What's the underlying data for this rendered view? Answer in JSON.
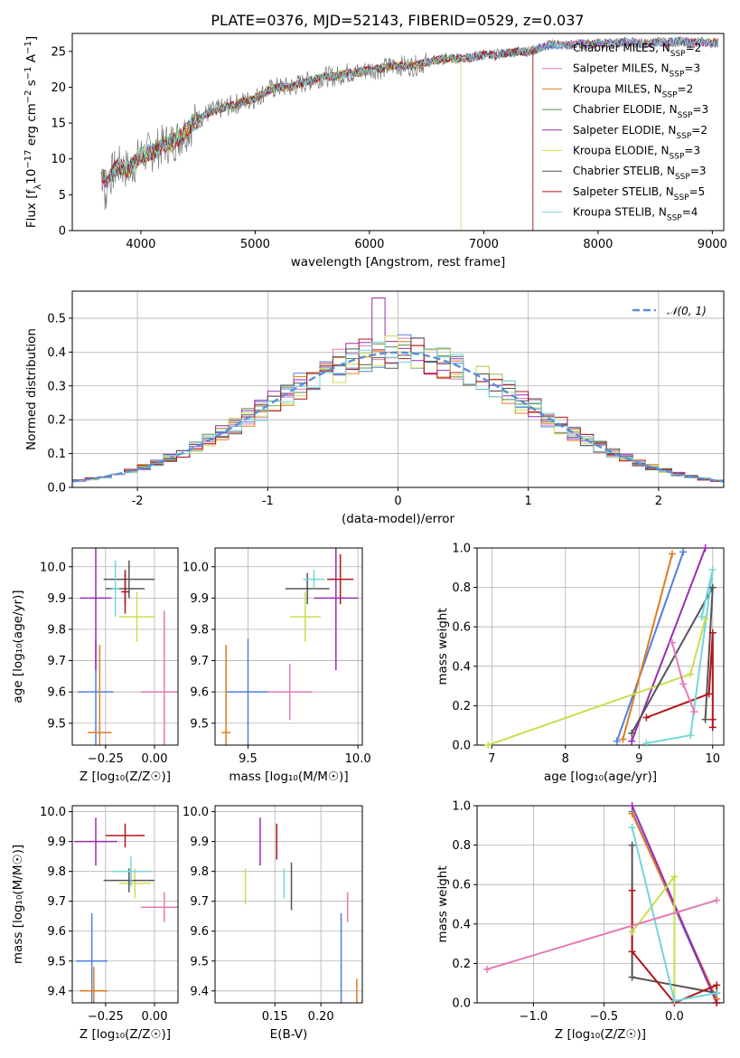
{
  "title": "PLATE=0376, MJD=52143, FIBERID=0529, z=0.037",
  "colors": {
    "Chabrier MILES": "#4f7fdd",
    "Salpeter MILES": "#e47ab6",
    "Kroupa MILES": "#e07b20",
    "Chabrier ELODIE": "#5c8a4a",
    "Salpeter ELODIE": "#9b2bb5",
    "Kroupa ELODIE": "#c8df4e",
    "Chabrier STELIB": "#555555",
    "Salpeter STELIB": "#b3151a",
    "Kroupa STELIB": "#72d6da",
    "gaussian": "#5b8ed9"
  },
  "chart_data": [
    {
      "id": "spectrum",
      "type": "line",
      "xlabel": "wavelength [Angstrom, rest frame]",
      "ylabel_parts": [
        "Flux [f",
        "λ",
        "10",
        "−17",
        " erg cm",
        "−2",
        " s",
        "−1",
        " A",
        "−1",
        "]"
      ],
      "xlim": [
        3400,
        9100
      ],
      "ylim": [
        0,
        27.5
      ],
      "xticks": [
        4000,
        5000,
        6000,
        7000,
        8000,
        9000
      ],
      "yticks": [
        0,
        5,
        10,
        15,
        20,
        25
      ],
      "legend_position": "top-right",
      "series": [
        {
          "name": "Chabrier MILES",
          "nssp": "2"
        },
        {
          "name": "Salpeter MILES",
          "nssp": "3"
        },
        {
          "name": "Kroupa MILES",
          "nssp": "2"
        },
        {
          "name": "Chabrier ELODIE",
          "nssp": "3"
        },
        {
          "name": "Salpeter ELODIE",
          "nssp": "2"
        },
        {
          "name": "Kroupa ELODIE",
          "nssp": "3"
        },
        {
          "name": "Chabrier STELIB",
          "nssp": "3"
        },
        {
          "name": "Salpeter STELIB",
          "nssp": "5"
        },
        {
          "name": "Kroupa STELIB",
          "nssp": "4"
        }
      ],
      "spectrum_points": [
        [
          3650,
          8
        ],
        [
          3700,
          7
        ],
        [
          3800,
          9
        ],
        [
          3900,
          8.5
        ],
        [
          4000,
          10.5
        ],
        [
          4100,
          11
        ],
        [
          4200,
          12
        ],
        [
          4300,
          12.5
        ],
        [
          4400,
          14
        ],
        [
          4500,
          15.5
        ],
        [
          4600,
          16.5
        ],
        [
          4700,
          17
        ],
        [
          4800,
          17.5
        ],
        [
          4900,
          18
        ],
        [
          5000,
          18.5
        ],
        [
          5100,
          19.5
        ],
        [
          5200,
          20
        ],
        [
          5300,
          20
        ],
        [
          5400,
          20.5
        ],
        [
          5500,
          21
        ],
        [
          5600,
          21.5
        ],
        [
          5700,
          21.5
        ],
        [
          5800,
          22
        ],
        [
          5900,
          22
        ],
        [
          6000,
          22.5
        ],
        [
          6100,
          22.5
        ],
        [
          6200,
          23
        ],
        [
          6300,
          23
        ],
        [
          6400,
          23
        ],
        [
          6500,
          23.5
        ],
        [
          6600,
          23.8
        ],
        [
          6700,
          24
        ],
        [
          6800,
          24
        ],
        [
          6900,
          24.2
        ],
        [
          7000,
          24.5
        ],
        [
          7100,
          24.5
        ],
        [
          7200,
          24.8
        ],
        [
          7300,
          25
        ],
        [
          7400,
          25
        ],
        [
          7500,
          25.5
        ],
        [
          7600,
          26
        ],
        [
          7700,
          25.8
        ],
        [
          7800,
          26
        ],
        [
          7900,
          26
        ],
        [
          8000,
          26.2
        ],
        [
          8100,
          26
        ],
        [
          8200,
          26.2
        ],
        [
          8300,
          26.3
        ],
        [
          8400,
          26
        ],
        [
          8500,
          26.3
        ],
        [
          8600,
          26.2
        ],
        [
          8700,
          26.4
        ],
        [
          8800,
          26.2
        ],
        [
          8900,
          26.3
        ],
        [
          9000,
          26.2
        ]
      ],
      "model_ends": {
        "Kroupa ELODIE": 6800,
        "Salpeter STELIB": 7430,
        "Chabrier ELODIE": 7430
      }
    },
    {
      "id": "residual-hist",
      "type": "bar",
      "xlabel": "(data-model)/error",
      "ylabel": "Normed distribution",
      "xlim": [
        -2.5,
        2.5
      ],
      "ylim": [
        0,
        0.58
      ],
      "xticks": [
        -2,
        -1,
        0,
        1,
        2
      ],
      "yticks": [
        0,
        0.1,
        0.2,
        0.3,
        0.4,
        0.5
      ],
      "legend": "𝒩(0, 1)",
      "bin_width": 0.1
    },
    {
      "id": "age-vs-Z",
      "type": "scatter",
      "xlabel": "Z [log₁₀(Z/Z☉)]",
      "ylabel": "age  [log₁₀(age/yr)]",
      "xlim": [
        -0.42,
        0.12
      ],
      "ylim": [
        9.43,
        10.06
      ],
      "xticks": [
        -0.25,
        0.0
      ],
      "xticklabels": [
        "−0.25",
        "0.00"
      ],
      "yticks": [
        9.5,
        9.6,
        9.7,
        9.8,
        9.9,
        10.0
      ],
      "points": [
        {
          "series": "Chabrier MILES",
          "x": -0.3,
          "y": 9.6,
          "xerr": 0.09,
          "yerr": 0.17
        },
        {
          "series": "Salpeter MILES",
          "x": 0.05,
          "y": 9.6,
          "xerr": 0.12,
          "yerr": 0.26
        },
        {
          "series": "Kroupa MILES",
          "x": -0.28,
          "y": 9.47,
          "xerr": 0.06,
          "yerr": 0.28
        },
        {
          "series": "Salpeter ELODIE",
          "x": -0.3,
          "y": 9.9,
          "xerr": 0.08,
          "yerr": 0.23
        },
        {
          "series": "Kroupa ELODIE",
          "x": -0.09,
          "y": 9.84,
          "xerr": 0.09,
          "yerr": 0.08
        },
        {
          "series": "Chabrier STELIB",
          "x": -0.13,
          "y": 9.96,
          "xerr": 0.13,
          "yerr": 0.06
        },
        {
          "series": "Chabrier STELIB",
          "x": -0.15,
          "y": 9.93,
          "xerr": 0.1,
          "yerr": 0.05
        },
        {
          "series": "Salpeter STELIB",
          "x": -0.15,
          "y": 9.92,
          "xerr": 0.02,
          "yerr": 0.07
        },
        {
          "series": "Kroupa STELIB",
          "x": -0.2,
          "y": 9.93,
          "xerr": 0.02,
          "yerr": 0.09
        }
      ]
    },
    {
      "id": "age-vs-mass",
      "type": "scatter",
      "xlabel": "mass [log₁₀(M/M☉)]",
      "ylabel": "",
      "xlim": [
        9.35,
        10.02
      ],
      "ylim": [
        9.43,
        10.06
      ],
      "xticks": [
        9.5,
        10.0
      ],
      "xticklabels": [
        "9.5",
        "10.0"
      ],
      "yticks": [
        9.5,
        9.6,
        9.7,
        9.8,
        9.9,
        10.0
      ],
      "points": [
        {
          "series": "Chabrier MILES",
          "x": 9.5,
          "y": 9.6,
          "xerr": 0.1,
          "yerr": 0.17
        },
        {
          "series": "Salpeter MILES",
          "x": 9.69,
          "y": 9.6,
          "xerr": 0.1,
          "yerr": 0.09
        },
        {
          "series": "Kroupa MILES",
          "x": 9.4,
          "y": 9.47,
          "xerr": 0.02,
          "yerr": 0.28
        },
        {
          "series": "Salpeter ELODIE",
          "x": 9.9,
          "y": 9.9,
          "xerr": 0.1,
          "yerr": 0.23
        },
        {
          "series": "Kroupa ELODIE",
          "x": 9.76,
          "y": 9.84,
          "xerr": 0.07,
          "yerr": 0.08
        },
        {
          "series": "Chabrier STELIB",
          "x": 9.77,
          "y": 9.93,
          "xerr": 0.1,
          "yerr": 0.05
        },
        {
          "series": "Salpeter STELIB",
          "x": 9.92,
          "y": 9.96,
          "xerr": 0.06,
          "yerr": 0.08
        },
        {
          "series": "Kroupa STELIB",
          "x": 9.8,
          "y": 9.96,
          "xerr": 0.05,
          "yerr": 0.03
        }
      ]
    },
    {
      "id": "mass-weight-vs-age",
      "type": "line",
      "xlabel": "age  [log₁₀(age/yr)]",
      "ylabel": "mass weight",
      "xlim": [
        6.8,
        10.15
      ],
      "ylim": [
        0,
        1
      ],
      "xticks": [
        7,
        8,
        9,
        10
      ],
      "yticks": [
        0,
        0.2,
        0.4,
        0.6,
        0.8,
        1.0
      ],
      "series": [
        {
          "series": "Chabrier MILES",
          "points": [
            [
              8.7,
              0.02
            ],
            [
              9.6,
              0.98
            ]
          ]
        },
        {
          "series": "Kroupa MILES",
          "points": [
            [
              8.78,
              0.03
            ],
            [
              9.45,
              0.97
            ]
          ]
        },
        {
          "series": "Salpeter ELODIE",
          "points": [
            [
              8.9,
              0.02
            ],
            [
              9.9,
              1.0
            ]
          ]
        },
        {
          "series": "Kroupa ELODIE",
          "points": [
            [
              6.95,
              0.0
            ],
            [
              9.7,
              0.36
            ],
            [
              9.9,
              0.64
            ]
          ]
        },
        {
          "series": "Chabrier STELIB",
          "points": [
            [
              8.9,
              0.06
            ],
            [
              10.0,
              0.8
            ],
            [
              9.9,
              0.13
            ]
          ]
        },
        {
          "series": "Salpeter STELIB",
          "points": [
            [
              9.1,
              0.14
            ],
            [
              9.95,
              0.26
            ],
            [
              10.0,
              0.57
            ],
            [
              10.0,
              0.13
            ],
            [
              10.0,
              0.09
            ]
          ]
        },
        {
          "series": "Kroupa STELIB",
          "points": [
            [
              9.1,
              0.01
            ],
            [
              9.7,
              0.05
            ],
            [
              10.0,
              0.89
            ],
            [
              9.85,
              0.65
            ]
          ]
        },
        {
          "series": "Salpeter MILES",
          "points": [
            [
              9.45,
              0.52
            ],
            [
              9.6,
              0.31
            ],
            [
              9.75,
              0.17
            ]
          ]
        }
      ]
    },
    {
      "id": "mass-vs-Z",
      "type": "scatter",
      "xlabel": "Z [log₁₀(Z/Z☉)]",
      "ylabel": "mass [log₁₀(M/M☉)]",
      "xlim": [
        -0.42,
        0.12
      ],
      "ylim": [
        9.36,
        10.02
      ],
      "xticks": [
        -0.25,
        0.0
      ],
      "xticklabels": [
        "−0.25",
        "0.00"
      ],
      "yticks": [
        9.4,
        9.5,
        9.6,
        9.7,
        9.8,
        9.9,
        10.0
      ],
      "points": [
        {
          "series": "Chabrier MILES",
          "x": -0.32,
          "y": 9.5,
          "xerr": 0.08,
          "yerr": 0.16
        },
        {
          "series": "Salpeter MILES",
          "x": 0.05,
          "y": 9.68,
          "xerr": 0.12,
          "yerr": 0.05
        },
        {
          "series": "Kroupa MILES",
          "x": -0.31,
          "y": 9.4,
          "xerr": 0.07,
          "yerr": 0.08
        },
        {
          "series": "Salpeter ELODIE",
          "x": -0.3,
          "y": 9.9,
          "xerr": 0.11,
          "yerr": 0.08
        },
        {
          "series": "Kroupa ELODIE",
          "x": -0.1,
          "y": 9.76,
          "xerr": 0.08,
          "yerr": 0.05
        },
        {
          "series": "Chabrier STELIB",
          "x": -0.13,
          "y": 9.77,
          "xerr": 0.13,
          "yerr": 0.04
        },
        {
          "series": "Salpeter STELIB",
          "x": -0.15,
          "y": 9.92,
          "xerr": 0.1,
          "yerr": 0.04
        },
        {
          "series": "Kroupa STELIB",
          "x": -0.12,
          "y": 9.8,
          "xerr": 0.1,
          "yerr": 0.05
        }
      ]
    },
    {
      "id": "mass-vs-EBV",
      "type": "scatter",
      "xlabel": "E(B-V)",
      "ylabel": "",
      "xlim": [
        0.085,
        0.245
      ],
      "ylim": [
        9.36,
        10.02
      ],
      "xticks": [
        0.15,
        0.2
      ],
      "xticklabels": [
        "0.15",
        "0.20"
      ],
      "yticks": [
        9.4,
        9.5,
        9.6,
        9.7,
        9.8,
        9.9,
        10.0
      ],
      "points": [
        {
          "series": "Chabrier MILES",
          "x": 0.222,
          "y": 9.5,
          "xerr": 0,
          "yerr": 0.16
        },
        {
          "series": "Salpeter MILES",
          "x": 0.229,
          "y": 9.68,
          "xerr": 0,
          "yerr": 0.05
        },
        {
          "series": "Kroupa MILES",
          "x": 0.239,
          "y": 9.4,
          "xerr": 0,
          "yerr": 0.04
        },
        {
          "series": "Salpeter ELODIE",
          "x": 0.134,
          "y": 9.9,
          "xerr": 0,
          "yerr": 0.08
        },
        {
          "series": "Kroupa ELODIE",
          "x": 0.118,
          "y": 9.75,
          "xerr": 0,
          "yerr": 0.06
        },
        {
          "series": "Chabrier STELIB",
          "x": 0.168,
          "y": 9.75,
          "xerr": 0,
          "yerr": 0.08
        },
        {
          "series": "Salpeter STELIB",
          "x": 0.152,
          "y": 9.9,
          "xerr": 0,
          "yerr": 0.06
        },
        {
          "series": "Kroupa STELIB",
          "x": 0.16,
          "y": 9.76,
          "xerr": 0,
          "yerr": 0.05
        }
      ]
    },
    {
      "id": "mass-weight-vs-Z",
      "type": "line",
      "xlabel": "Z [log₁₀(Z/Z☉)]",
      "ylabel": "mass weight",
      "xlim": [
        -1.4,
        0.35
      ],
      "ylim": [
        0,
        1
      ],
      "xticks": [
        -1.0,
        -0.5,
        0.0
      ],
      "xticklabels": [
        "−1.0",
        "−0.5",
        "0.0"
      ],
      "yticks": [
        0,
        0.2,
        0.4,
        0.6,
        0.8,
        1.0
      ],
      "series": [
        {
          "series": "Chabrier MILES",
          "points": [
            [
              -0.3,
              0.97
            ],
            [
              0.3,
              0.0
            ]
          ]
        },
        {
          "series": "Kroupa MILES",
          "points": [
            [
              -0.3,
              0.96
            ],
            [
              0.3,
              0.02
            ]
          ]
        },
        {
          "series": "Salpeter ELODIE",
          "points": [
            [
              -0.3,
              1.0
            ],
            [
              0.3,
              0.0
            ]
          ]
        },
        {
          "series": "Kroupa ELODIE",
          "points": [
            [
              -0.3,
              0.36
            ],
            [
              0.0,
              0.64
            ],
            [
              0.0,
              0.0
            ]
          ]
        },
        {
          "series": "Chabrier STELIB",
          "points": [
            [
              -0.3,
              0.8
            ],
            [
              -0.3,
              0.13
            ],
            [
              0.3,
              0.05
            ]
          ]
        },
        {
          "series": "Salpeter STELIB",
          "points": [
            [
              -0.3,
              0.57
            ],
            [
              -0.3,
              0.26
            ],
            [
              0.0,
              0.0
            ],
            [
              0.3,
              0.09
            ],
            [
              0.3,
              0.0
            ]
          ]
        },
        {
          "series": "Kroupa STELIB",
          "points": [
            [
              -0.3,
              0.89
            ],
            [
              0.0,
              0.01
            ],
            [
              0.3,
              0.05
            ]
          ]
        },
        {
          "series": "Salpeter MILES",
          "points": [
            [
              -1.33,
              0.17
            ],
            [
              0.3,
              0.52
            ]
          ]
        }
      ]
    }
  ]
}
